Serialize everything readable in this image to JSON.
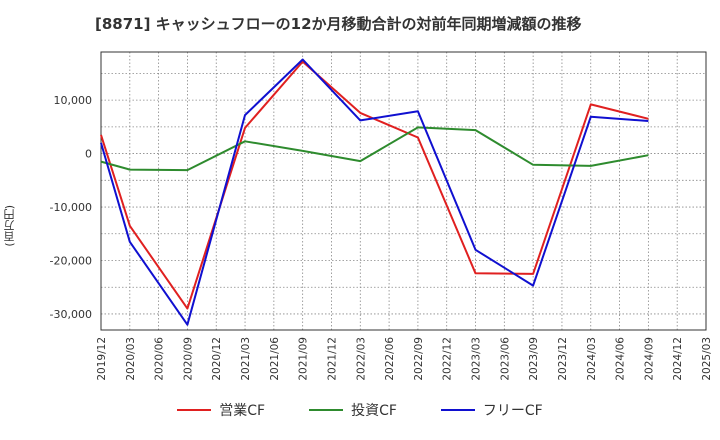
{
  "chart_data": {
    "type": "line",
    "title": "[8871]  キャッシュフローの12か月移動合計の対前年同期増減額の推移",
    "ylabel": "(百万円)",
    "xlabel": "",
    "ylim": [
      -33000,
      19000
    ],
    "yticks": [
      -30000,
      -20000,
      -10000,
      0,
      10000
    ],
    "ytick_labels": [
      "-30,000",
      "-20,000",
      "-10,000",
      "0",
      "10,000"
    ],
    "x": [
      "2019/12",
      "2020/03",
      "2020/06",
      "2020/09",
      "2020/12",
      "2021/03",
      "2021/06",
      "2021/09",
      "2021/12",
      "2022/03",
      "2022/06",
      "2022/09",
      "2022/12",
      "2023/03",
      "2023/06",
      "2023/09",
      "2023/12",
      "2024/03",
      "2024/06",
      "2024/09",
      "2024/12",
      "2025/03"
    ],
    "series": [
      {
        "name": "営業CF",
        "color": "#e02020",
        "values": [
          3500,
          -13500,
          null,
          -29000,
          null,
          4800,
          null,
          17200,
          null,
          7600,
          null,
          3000,
          null,
          -22400,
          null,
          -22500,
          null,
          9200,
          null,
          6500,
          null,
          null
        ]
      },
      {
        "name": "投資CF",
        "color": "#2e8b2e",
        "values": [
          -1500,
          -3000,
          null,
          -3100,
          null,
          2300,
          null,
          500,
          null,
          -1400,
          null,
          4900,
          null,
          4400,
          null,
          -2100,
          null,
          -2300,
          null,
          -300,
          null,
          null
        ]
      },
      {
        "name": "フリーCF",
        "color": "#1010d0",
        "values": [
          2000,
          -16500,
          null,
          -32000,
          null,
          7200,
          null,
          17600,
          null,
          6200,
          null,
          7900,
          null,
          -18000,
          null,
          -24700,
          null,
          6900,
          null,
          6100,
          null,
          null
        ]
      }
    ],
    "grid": true,
    "legend": "bottom-center"
  }
}
